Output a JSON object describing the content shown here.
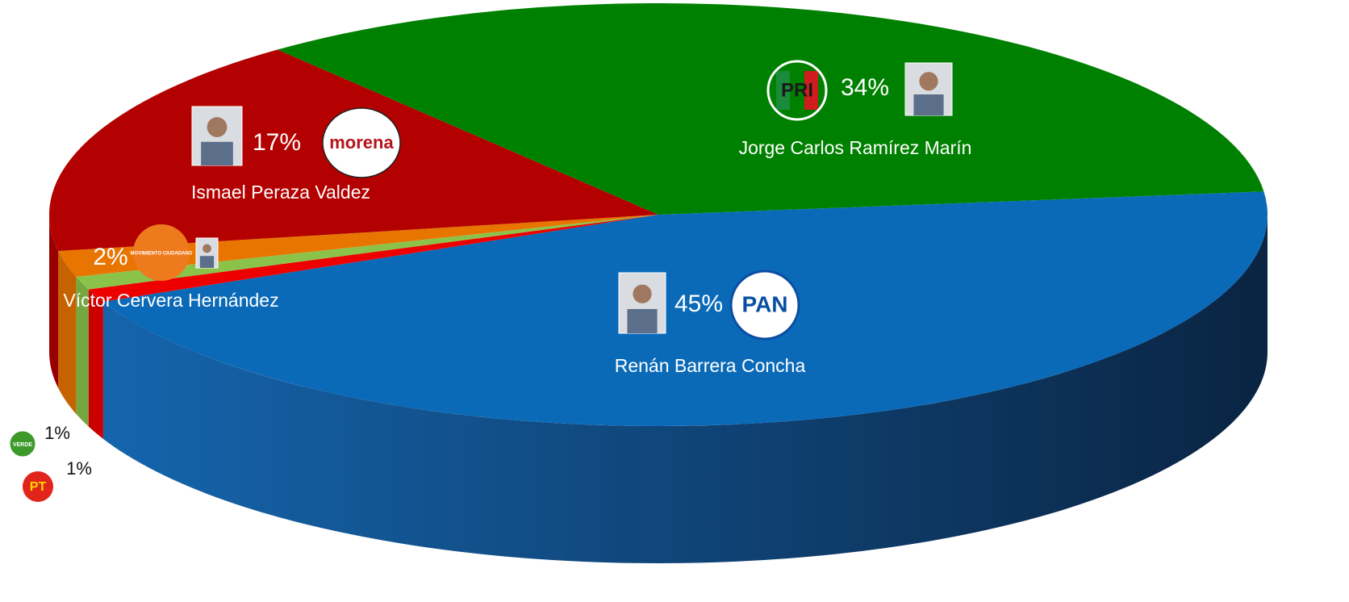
{
  "chart_data": {
    "type": "pie",
    "categories": [
      "Renán Barrera Concha",
      null,
      null,
      "Víctor Cervera Hernández",
      "Ismael Peraza Valdez",
      "Jorge Carlos Ramírez Marín"
    ],
    "parties": [
      "PAN",
      "PT",
      "VERDE",
      "MOVIMIENTO CIUDADANO",
      "morena",
      "PRI"
    ],
    "values": [
      45,
      1,
      1,
      2,
      17,
      34
    ],
    "value_labels": [
      "45%",
      "1%",
      "1%",
      "2%",
      "17%",
      "34%"
    ],
    "colors": [
      "#0b6ab8",
      "#ee0000",
      "#8bc34a",
      "#e87500",
      "#b30000",
      "#008000"
    ]
  }
}
